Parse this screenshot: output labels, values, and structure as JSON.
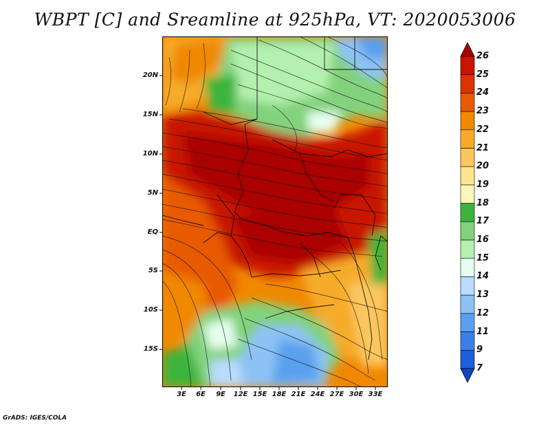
{
  "title": "WBPT [C] and Sreamline at 925hPa, VT: 2020053006",
  "credit": "GrADS: IGES/COLA",
  "map": {
    "lat_labels": [
      "20N",
      "15N",
      "10N",
      "5N",
      "EQ",
      "5S",
      "10S",
      "15S"
    ],
    "lon_labels": [
      "3E",
      "6E",
      "9E",
      "12E",
      "15E",
      "18E",
      "21E",
      "24E",
      "27E",
      "30E",
      "33E"
    ],
    "region_description": "Central Africa, approx. 0E-34E, 20S-25N"
  },
  "colorbar": {
    "levels": [
      "26",
      "25",
      "24",
      "23",
      "22",
      "21",
      "20",
      "19",
      "18",
      "17",
      "16",
      "15",
      "14",
      "13",
      "12",
      "11",
      "9",
      "7"
    ],
    "colors": [
      "#aa0000",
      "#c81400",
      "#dc3200",
      "#e85a00",
      "#f08800",
      "#f7ab2c",
      "#fbc65e",
      "#fde58f",
      "#fbf5b9",
      "#3cb43c",
      "#82d27d",
      "#b4f0b0",
      "#e6fff0",
      "#b9dcff",
      "#8ec2f5",
      "#5aa0ee",
      "#3a80e6",
      "#1c5fd8",
      "#1046c0"
    ]
  }
}
